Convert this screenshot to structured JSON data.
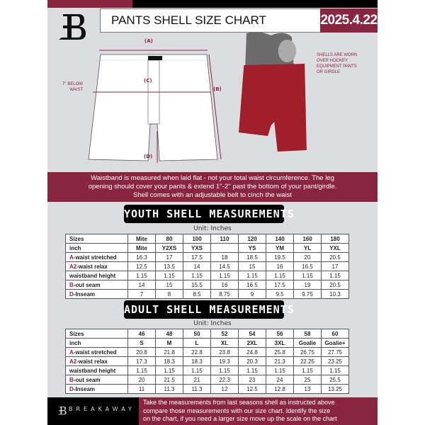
{
  "header": {
    "title": "PANTS SHELL SIZE CHART",
    "date": "2025.4.22"
  },
  "diagram": {
    "label_a": "(A)",
    "label_b": "(B)",
    "label_c": "(C)",
    "label_d": "(D)",
    "below_waist": [
      "7'' BELOW",
      "WAIST"
    ],
    "note": [
      "SHELLS ARE WORN",
      "OVER HOCKEY",
      "EQUIPMENT PANTS",
      "OR GIRDLE"
    ]
  },
  "info_band": [
    "Waistband is measured when laid flat - not your total waist circumference. The leg",
    "opening should cover your pants & extend 1''-2'' past the bottom of your pant/girdle.",
    "Shell comes with an adjustable belt to cinch the waist"
  ],
  "youth": {
    "title": "YOUTH SHELL MEASUREMENTS",
    "unit": "Unit: Inches",
    "rows": [
      {
        "prefix": "",
        "label": "Sizes",
        "values": [
          "Mite",
          "80",
          "100",
          "110",
          "120",
          "140",
          "160",
          "180"
        ]
      },
      {
        "prefix": "",
        "label": "inch",
        "values": [
          "Mite",
          "Y2XS",
          "YXS",
          "",
          "YS",
          "YM",
          "YL",
          "YXL"
        ]
      },
      {
        "prefix": "A",
        "label": "-waist stretched",
        "values": [
          "16.3",
          "17",
          "17.5",
          "18",
          "18.5",
          "19.5",
          "20",
          "20.5"
        ]
      },
      {
        "prefix": "A2",
        "label": "-waist relax",
        "values": [
          "12.5",
          "13.5",
          "14",
          "14.5",
          "15",
          "16",
          "16.5",
          "17"
        ]
      },
      {
        "prefix": "",
        "label": "waistband height",
        "values": [
          "1.15",
          "1.15",
          "1.15",
          "1.15",
          "1.15",
          "1.15",
          "1.15",
          "1.15"
        ]
      },
      {
        "prefix": "B",
        "label": "-out seam",
        "values": [
          "14",
          "15",
          "15.5",
          "16",
          "16.5",
          "17.5",
          "19",
          "20.5"
        ]
      },
      {
        "prefix": "D",
        "label": "-Inseam",
        "values": [
          "7",
          "8",
          "8.5",
          "8.75",
          "9",
          "9.5",
          "9.75",
          "10.3"
        ]
      }
    ]
  },
  "adult": {
    "title": "ADULT SHELL MEASUREMENTS",
    "unit": "Unit: Inches",
    "rows": [
      {
        "prefix": "",
        "label": "Sizes",
        "values": [
          "46",
          "48",
          "50",
          "52",
          "54",
          "56",
          "58",
          "60"
        ]
      },
      {
        "prefix": "",
        "label": "inch",
        "values": [
          "S",
          "M",
          "L",
          "XL",
          "2XL",
          "3XL",
          "Goalie",
          "Goalie+"
        ]
      },
      {
        "prefix": "A",
        "label": "-waist stretched",
        "values": [
          "20.8",
          "21.8",
          "22.8",
          "23.8",
          "24.8",
          "25.8",
          "26.75",
          "27.75"
        ]
      },
      {
        "prefix": "A2",
        "label": "-waist relax",
        "values": [
          "17.3",
          "18.3",
          "18.3",
          "19.3",
          "20.3",
          "21.3",
          "22.25",
          "23.25"
        ]
      },
      {
        "prefix": "",
        "label": "waistband height",
        "values": [
          "1.15",
          "1.15",
          "1.15",
          "1.15",
          "1.15",
          "1.15",
          "1.15",
          "1.15"
        ]
      },
      {
        "prefix": "B",
        "label": "-out seam",
        "values": [
          "20",
          "21.5",
          "21",
          "22.3",
          "23",
          "24",
          "25",
          "25.5"
        ]
      },
      {
        "prefix": "D",
        "label": "-Inseam",
        "values": [
          "11",
          "11.3",
          "11.3",
          "12",
          "12.5",
          "12.8",
          "13",
          "13.25"
        ]
      }
    ]
  },
  "footer": {
    "brand": "BREAKAWAY",
    "text": [
      "Take the measurements from last seasons shell as instructed above",
      "compare those measurements  with our size chart. Identify the size",
      "on the chart, if you need a larger size move up the scale on the chart"
    ]
  },
  "colors": {
    "accent": "#8a2540",
    "background": "#dcdde0"
  }
}
